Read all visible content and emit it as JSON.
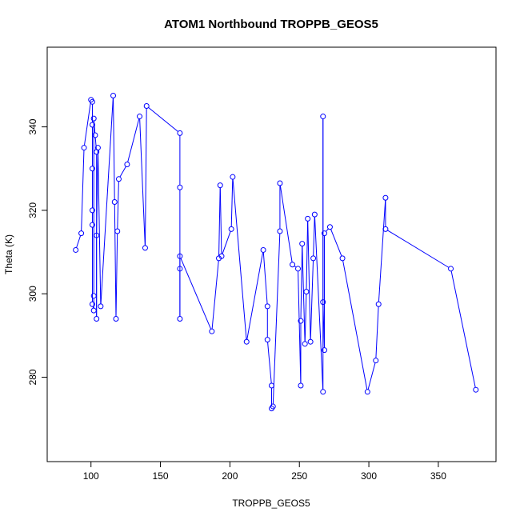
{
  "chart_data": {
    "type": "line",
    "markers": "open-circle",
    "title": "ATOM1 Northbound TROPPB_GEOS5",
    "xlabel": "TROPPB_GEOS5",
    "ylabel": "Theta (K)",
    "xlim": [
      80,
      380
    ],
    "ylim": [
      264,
      352
    ],
    "xticks": [
      "100",
      "150",
      "200",
      "250",
      "300",
      "350"
    ],
    "yticks": [
      "280",
      "300",
      "320",
      "340"
    ],
    "line_color": "#0000ff",
    "grid": false,
    "legend": "none",
    "x": [
      89,
      93,
      95,
      100,
      101,
      101,
      101,
      101,
      101,
      101,
      102,
      102,
      102,
      103,
      104,
      104,
      104,
      105,
      107,
      116,
      117,
      118,
      119,
      120,
      126,
      135,
      139,
      140,
      164,
      164,
      164,
      164,
      164,
      187,
      192,
      193,
      194,
      201,
      202,
      212,
      224,
      227,
      227,
      230,
      230,
      231,
      236,
      236,
      245,
      249,
      251,
      251,
      252,
      254,
      255,
      256,
      258,
      260,
      261,
      267,
      267,
      267,
      268,
      268,
      272,
      281,
      299,
      305,
      307,
      312,
      312,
      359,
      377
    ],
    "y": [
      310.5,
      314.5,
      335,
      346.5,
      346,
      340.5,
      330,
      320,
      316.5,
      297.5,
      296,
      299.5,
      342,
      338,
      334,
      294,
      314,
      335,
      297,
      347.5,
      322,
      294,
      315,
      327.5,
      331,
      342.5,
      311,
      345,
      338.5,
      325.5,
      306,
      294,
      309,
      291,
      308.5,
      326,
      309,
      315.5,
      328,
      288.5,
      310.5,
      297,
      289,
      278,
      272.5,
      273,
      315,
      326.5,
      307,
      306,
      278,
      293.5,
      312,
      288,
      300.5,
      318,
      288.5,
      308.5,
      319,
      276.5,
      342.5,
      298,
      286.5,
      314.5,
      316,
      308.5,
      276.5,
      284,
      297.5,
      323,
      315.5,
      306,
      277
    ]
  }
}
